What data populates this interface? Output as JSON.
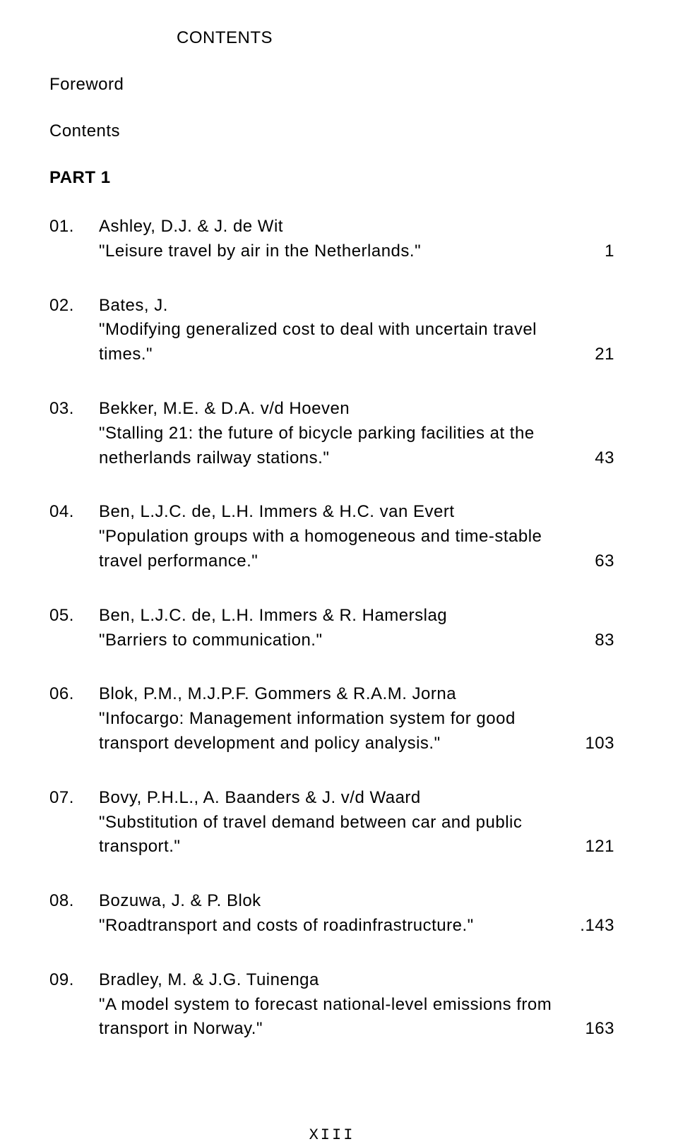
{
  "heading": "CONTENTS",
  "labels": {
    "foreword": "Foreword",
    "contents": "Contents",
    "part": "PART 1"
  },
  "entries": [
    {
      "num": "01.",
      "authors": "Ashley, D.J. & J. de Wit",
      "title": "\"Leisure travel by air in the Netherlands.\"",
      "page": "1"
    },
    {
      "num": "02.",
      "authors": "Bates, J.",
      "title": "\"Modifying generalized cost to deal with uncertain travel times.\"",
      "page": "21"
    },
    {
      "num": "03.",
      "authors": "Bekker, M.E. & D.A. v/d Hoeven",
      "title": "\"Stalling 21: the future of bicycle parking facilities at the netherlands railway stations.\"",
      "page": "43"
    },
    {
      "num": "04.",
      "authors": "Ben, L.J.C. de, L.H. Immers & H.C. van Evert",
      "title": "\"Population groups with a homogeneous and time-stable travel performance.\"",
      "page": "63"
    },
    {
      "num": "05.",
      "authors": "Ben, L.J.C. de, L.H. Immers & R. Hamerslag",
      "title": "\"Barriers to communication.\"",
      "page": "83"
    },
    {
      "num": "06.",
      "authors": "Blok, P.M., M.J.P.F. Gommers & R.A.M. Jorna",
      "title": "\"Infocargo: Management information system for good transport development and policy analysis.\"",
      "page": "103"
    },
    {
      "num": "07.",
      "authors": "Bovy, P.H.L., A. Baanders & J. v/d Waard",
      "title": "\"Substitution of travel demand between car and public transport.\"",
      "page": "121"
    },
    {
      "num": "08.",
      "authors": "Bozuwa, J. & P. Blok",
      "title": "\"Roadtransport and costs of roadinfrastructure.\"",
      "page": ".143"
    },
    {
      "num": "09.",
      "authors": "Bradley, M. & J.G. Tuinenga",
      "title": "\"A model system to forecast national-level emissions from transport in Norway.\"",
      "page": "163"
    }
  ],
  "footer": "XIII"
}
